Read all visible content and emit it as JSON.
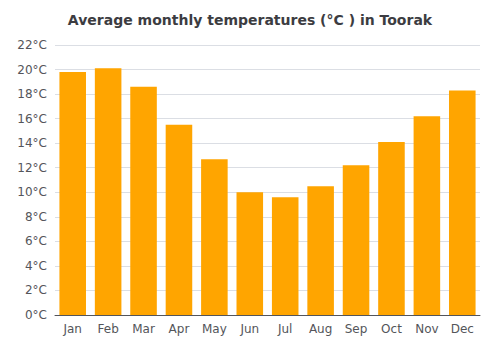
{
  "chart_data": {
    "type": "bar",
    "title": "Average monthly temperatures (°C ) in Toorak",
    "categories": [
      "Jan",
      "Feb",
      "Mar",
      "Apr",
      "May",
      "Jun",
      "Jul",
      "Aug",
      "Sep",
      "Oct",
      "Nov",
      "Dec"
    ],
    "values": [
      19.8,
      20.1,
      18.6,
      15.5,
      12.7,
      10.0,
      9.6,
      10.5,
      12.2,
      14.1,
      16.2,
      18.3
    ],
    "color": "#FFA500",
    "ylim": [
      0,
      22
    ],
    "yticks": [
      {
        "value": 0,
        "label": "0°C"
      },
      {
        "value": 2,
        "label": "2°C"
      },
      {
        "value": 4,
        "label": "4°C"
      },
      {
        "value": 6,
        "label": "6°C"
      },
      {
        "value": 8,
        "label": "8°C"
      },
      {
        "value": 10,
        "label": "10°C"
      },
      {
        "value": 12,
        "label": "12°C"
      },
      {
        "value": 14,
        "label": "14°C"
      },
      {
        "value": 16,
        "label": "16°C"
      },
      {
        "value": 18,
        "label": "18°C"
      },
      {
        "value": 20,
        "label": "20°C"
      },
      {
        "value": 22,
        "label": "22°C"
      }
    ],
    "grid": true
  }
}
